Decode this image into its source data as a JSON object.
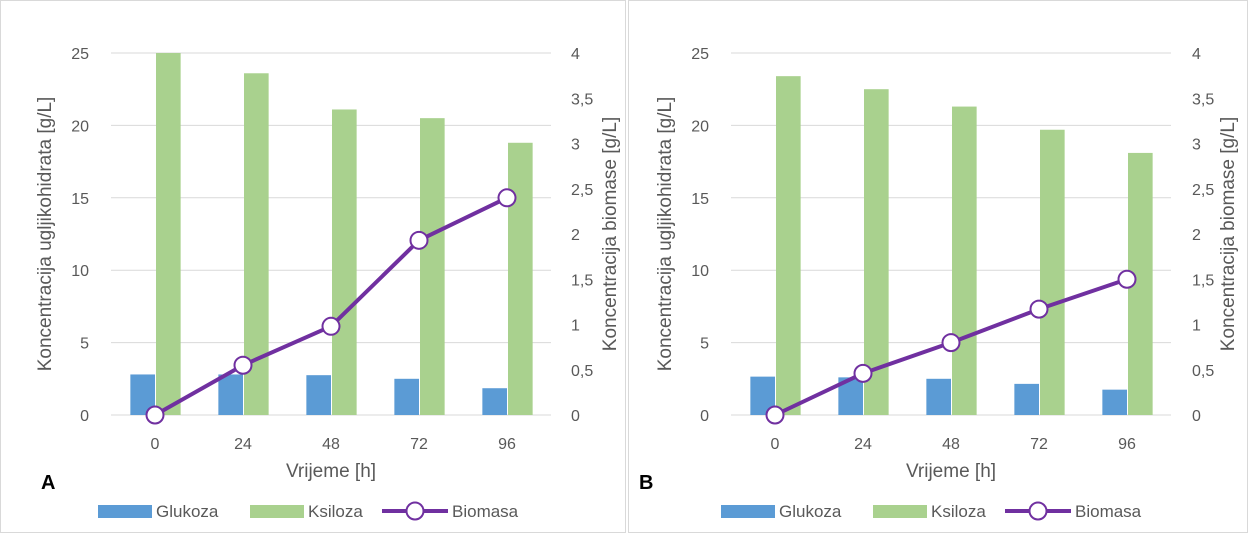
{
  "colors": {
    "glukoza": "#5b9bd5",
    "ksiloza": "#a9d18e",
    "biomasa": "#7030a0",
    "grid": "#d9d9d9",
    "text": "#595959"
  },
  "chart_data": [
    {
      "type": "bar",
      "panel_label": "A",
      "categories": [
        "0",
        "24",
        "48",
        "72",
        "96"
      ],
      "xlabel": "Vrijeme [h]",
      "ylabel": "Koncentracija ugljikohidrata [g/L]",
      "y2label": "Koncentracija biomase [g/L]",
      "ylim": [
        0,
        25
      ],
      "yticks": [
        "0",
        "5",
        "10",
        "15",
        "20",
        "25"
      ],
      "y2lim": [
        0,
        4
      ],
      "y2ticks": [
        "0",
        "0,5",
        "1",
        "1,5",
        "2",
        "2,5",
        "3",
        "3,5",
        "4"
      ],
      "grid": true,
      "legend_position": "bottom",
      "series": [
        {
          "name": "Glukoza",
          "type": "bar",
          "axis": "left",
          "values": [
            2.8,
            2.8,
            2.75,
            2.5,
            1.85
          ]
        },
        {
          "name": "Ksiloza",
          "type": "bar",
          "axis": "left",
          "values": [
            25.0,
            23.6,
            21.1,
            20.5,
            18.8
          ]
        },
        {
          "name": "Biomasa",
          "type": "line",
          "axis": "right",
          "values": [
            0.0,
            0.55,
            0.98,
            1.93,
            2.4
          ]
        }
      ]
    },
    {
      "type": "bar",
      "panel_label": "B",
      "categories": [
        "0",
        "24",
        "48",
        "72",
        "96"
      ],
      "xlabel": "Vrijeme [h]",
      "ylabel": "Koncentracija ugljikohidrata [g/L]",
      "y2label": "Koncentracija biomase [g/L]",
      "ylim": [
        0,
        25
      ],
      "yticks": [
        "0",
        "5",
        "10",
        "15",
        "20",
        "25"
      ],
      "y2lim": [
        0,
        4
      ],
      "y2ticks": [
        "0",
        "0,5",
        "1",
        "1,5",
        "2",
        "2,5",
        "3",
        "3,5",
        "4"
      ],
      "grid": true,
      "legend_position": "bottom",
      "series": [
        {
          "name": "Glukoza",
          "type": "bar",
          "axis": "left",
          "values": [
            2.65,
            2.6,
            2.5,
            2.15,
            1.75
          ]
        },
        {
          "name": "Ksiloza",
          "type": "bar",
          "axis": "left",
          "values": [
            23.4,
            22.5,
            21.3,
            19.7,
            18.1
          ]
        },
        {
          "name": "Biomasa",
          "type": "line",
          "axis": "right",
          "values": [
            0.0,
            0.46,
            0.8,
            1.17,
            1.5
          ]
        }
      ]
    }
  ]
}
